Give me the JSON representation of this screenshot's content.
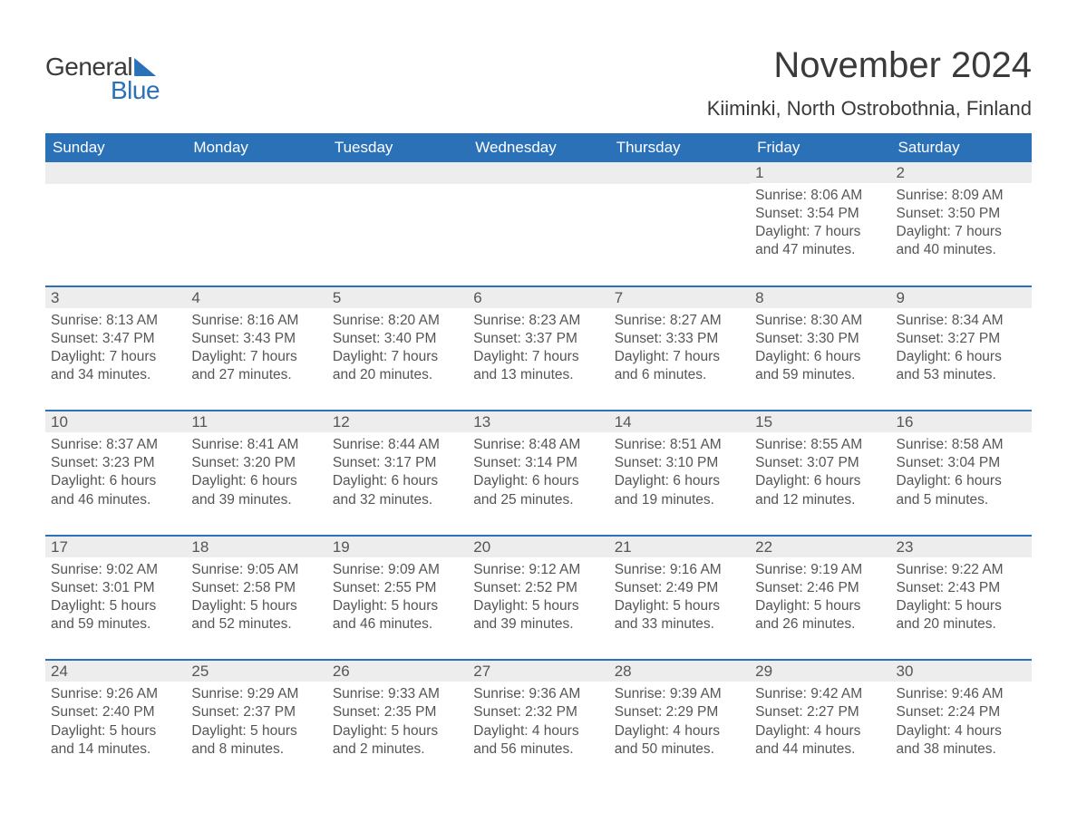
{
  "colors": {
    "header_bg": "#2a71b8",
    "header_text": "#ffffff",
    "daynum_bg": "#ededed",
    "daynum_border": "#2a71b8",
    "body_text": "#555555",
    "title_text": "#3a3a3a",
    "page_bg": "#ffffff",
    "logo_blue": "#2a71b8"
  },
  "typography": {
    "title_fontsize_pt": 30,
    "location_fontsize_pt": 17,
    "header_fontsize_pt": 13,
    "daynum_fontsize_pt": 13,
    "body_fontsize_pt": 12,
    "font_family": "Arial"
  },
  "logo": {
    "text1": "General",
    "text2": "Blue"
  },
  "title": "November 2024",
  "location": "Kiiminki, North Ostrobothnia, Finland",
  "day_headers": [
    "Sunday",
    "Monday",
    "Tuesday",
    "Wednesday",
    "Thursday",
    "Friday",
    "Saturday"
  ],
  "weeks": [
    [
      {
        "n": "",
        "sr": "",
        "ss": "",
        "dl1": "",
        "dl2": ""
      },
      {
        "n": "",
        "sr": "",
        "ss": "",
        "dl1": "",
        "dl2": ""
      },
      {
        "n": "",
        "sr": "",
        "ss": "",
        "dl1": "",
        "dl2": ""
      },
      {
        "n": "",
        "sr": "",
        "ss": "",
        "dl1": "",
        "dl2": ""
      },
      {
        "n": "",
        "sr": "",
        "ss": "",
        "dl1": "",
        "dl2": ""
      },
      {
        "n": "1",
        "sr": "Sunrise: 8:06 AM",
        "ss": "Sunset: 3:54 PM",
        "dl1": "Daylight: 7 hours",
        "dl2": "and 47 minutes."
      },
      {
        "n": "2",
        "sr": "Sunrise: 8:09 AM",
        "ss": "Sunset: 3:50 PM",
        "dl1": "Daylight: 7 hours",
        "dl2": "and 40 minutes."
      }
    ],
    [
      {
        "n": "3",
        "sr": "Sunrise: 8:13 AM",
        "ss": "Sunset: 3:47 PM",
        "dl1": "Daylight: 7 hours",
        "dl2": "and 34 minutes."
      },
      {
        "n": "4",
        "sr": "Sunrise: 8:16 AM",
        "ss": "Sunset: 3:43 PM",
        "dl1": "Daylight: 7 hours",
        "dl2": "and 27 minutes."
      },
      {
        "n": "5",
        "sr": "Sunrise: 8:20 AM",
        "ss": "Sunset: 3:40 PM",
        "dl1": "Daylight: 7 hours",
        "dl2": "and 20 minutes."
      },
      {
        "n": "6",
        "sr": "Sunrise: 8:23 AM",
        "ss": "Sunset: 3:37 PM",
        "dl1": "Daylight: 7 hours",
        "dl2": "and 13 minutes."
      },
      {
        "n": "7",
        "sr": "Sunrise: 8:27 AM",
        "ss": "Sunset: 3:33 PM",
        "dl1": "Daylight: 7 hours",
        "dl2": "and 6 minutes."
      },
      {
        "n": "8",
        "sr": "Sunrise: 8:30 AM",
        "ss": "Sunset: 3:30 PM",
        "dl1": "Daylight: 6 hours",
        "dl2": "and 59 minutes."
      },
      {
        "n": "9",
        "sr": "Sunrise: 8:34 AM",
        "ss": "Sunset: 3:27 PM",
        "dl1": "Daylight: 6 hours",
        "dl2": "and 53 minutes."
      }
    ],
    [
      {
        "n": "10",
        "sr": "Sunrise: 8:37 AM",
        "ss": "Sunset: 3:23 PM",
        "dl1": "Daylight: 6 hours",
        "dl2": "and 46 minutes."
      },
      {
        "n": "11",
        "sr": "Sunrise: 8:41 AM",
        "ss": "Sunset: 3:20 PM",
        "dl1": "Daylight: 6 hours",
        "dl2": "and 39 minutes."
      },
      {
        "n": "12",
        "sr": "Sunrise: 8:44 AM",
        "ss": "Sunset: 3:17 PM",
        "dl1": "Daylight: 6 hours",
        "dl2": "and 32 minutes."
      },
      {
        "n": "13",
        "sr": "Sunrise: 8:48 AM",
        "ss": "Sunset: 3:14 PM",
        "dl1": "Daylight: 6 hours",
        "dl2": "and 25 minutes."
      },
      {
        "n": "14",
        "sr": "Sunrise: 8:51 AM",
        "ss": "Sunset: 3:10 PM",
        "dl1": "Daylight: 6 hours",
        "dl2": "and 19 minutes."
      },
      {
        "n": "15",
        "sr": "Sunrise: 8:55 AM",
        "ss": "Sunset: 3:07 PM",
        "dl1": "Daylight: 6 hours",
        "dl2": "and 12 minutes."
      },
      {
        "n": "16",
        "sr": "Sunrise: 8:58 AM",
        "ss": "Sunset: 3:04 PM",
        "dl1": "Daylight: 6 hours",
        "dl2": "and 5 minutes."
      }
    ],
    [
      {
        "n": "17",
        "sr": "Sunrise: 9:02 AM",
        "ss": "Sunset: 3:01 PM",
        "dl1": "Daylight: 5 hours",
        "dl2": "and 59 minutes."
      },
      {
        "n": "18",
        "sr": "Sunrise: 9:05 AM",
        "ss": "Sunset: 2:58 PM",
        "dl1": "Daylight: 5 hours",
        "dl2": "and 52 minutes."
      },
      {
        "n": "19",
        "sr": "Sunrise: 9:09 AM",
        "ss": "Sunset: 2:55 PM",
        "dl1": "Daylight: 5 hours",
        "dl2": "and 46 minutes."
      },
      {
        "n": "20",
        "sr": "Sunrise: 9:12 AM",
        "ss": "Sunset: 2:52 PM",
        "dl1": "Daylight: 5 hours",
        "dl2": "and 39 minutes."
      },
      {
        "n": "21",
        "sr": "Sunrise: 9:16 AM",
        "ss": "Sunset: 2:49 PM",
        "dl1": "Daylight: 5 hours",
        "dl2": "and 33 minutes."
      },
      {
        "n": "22",
        "sr": "Sunrise: 9:19 AM",
        "ss": "Sunset: 2:46 PM",
        "dl1": "Daylight: 5 hours",
        "dl2": "and 26 minutes."
      },
      {
        "n": "23",
        "sr": "Sunrise: 9:22 AM",
        "ss": "Sunset: 2:43 PM",
        "dl1": "Daylight: 5 hours",
        "dl2": "and 20 minutes."
      }
    ],
    [
      {
        "n": "24",
        "sr": "Sunrise: 9:26 AM",
        "ss": "Sunset: 2:40 PM",
        "dl1": "Daylight: 5 hours",
        "dl2": "and 14 minutes."
      },
      {
        "n": "25",
        "sr": "Sunrise: 9:29 AM",
        "ss": "Sunset: 2:37 PM",
        "dl1": "Daylight: 5 hours",
        "dl2": "and 8 minutes."
      },
      {
        "n": "26",
        "sr": "Sunrise: 9:33 AM",
        "ss": "Sunset: 2:35 PM",
        "dl1": "Daylight: 5 hours",
        "dl2": "and 2 minutes."
      },
      {
        "n": "27",
        "sr": "Sunrise: 9:36 AM",
        "ss": "Sunset: 2:32 PM",
        "dl1": "Daylight: 4 hours",
        "dl2": "and 56 minutes."
      },
      {
        "n": "28",
        "sr": "Sunrise: 9:39 AM",
        "ss": "Sunset: 2:29 PM",
        "dl1": "Daylight: 4 hours",
        "dl2": "and 50 minutes."
      },
      {
        "n": "29",
        "sr": "Sunrise: 9:42 AM",
        "ss": "Sunset: 2:27 PM",
        "dl1": "Daylight: 4 hours",
        "dl2": "and 44 minutes."
      },
      {
        "n": "30",
        "sr": "Sunrise: 9:46 AM",
        "ss": "Sunset: 2:24 PM",
        "dl1": "Daylight: 4 hours",
        "dl2": "and 38 minutes."
      }
    ]
  ]
}
